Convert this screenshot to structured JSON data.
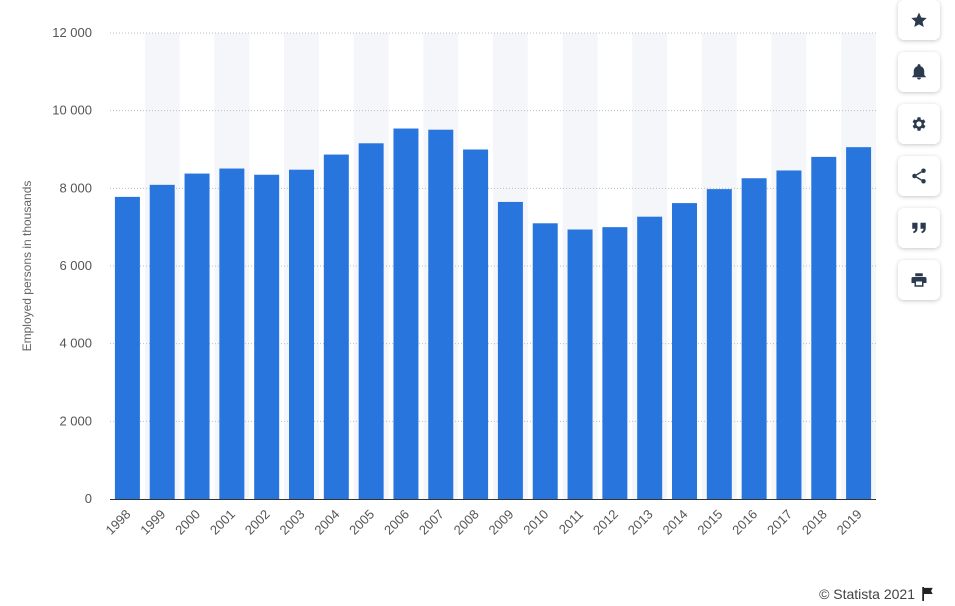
{
  "chart_data": {
    "type": "bar",
    "categories": [
      "1998",
      "1999",
      "2000",
      "2001",
      "2002",
      "2003",
      "2004",
      "2005",
      "2006",
      "2007",
      "2008",
      "2009",
      "2010",
      "2011",
      "2012",
      "2013",
      "2014",
      "2015",
      "2016",
      "2017",
      "2018",
      "2019"
    ],
    "values": [
      7780,
      8090,
      8380,
      8510,
      8350,
      8480,
      8870,
      9160,
      9540,
      9510,
      9000,
      7650,
      7100,
      6940,
      7000,
      7270,
      7620,
      7980,
      8260,
      8460,
      8810,
      9060
    ],
    "ylabel": "Employed persons in thousands",
    "xlabel": "",
    "ylim": [
      0,
      12000
    ],
    "yticks": [
      0,
      2000,
      4000,
      6000,
      8000,
      10000,
      12000
    ],
    "ytick_labels": [
      "0",
      "2 000",
      "4 000",
      "6 000",
      "8 000",
      "10 000",
      "12 000"
    ],
    "bar_color": "#2876dd",
    "grid": true,
    "grid_style": "dotted"
  },
  "toolbar": {
    "items": [
      {
        "name": "favorite-button",
        "icon": "star-icon"
      },
      {
        "name": "notification-button",
        "icon": "bell-icon"
      },
      {
        "name": "settings-button",
        "icon": "gear-icon"
      },
      {
        "name": "share-button",
        "icon": "share-icon"
      },
      {
        "name": "cite-button",
        "icon": "quote-icon"
      },
      {
        "name": "print-button",
        "icon": "print-icon"
      }
    ]
  },
  "credit": {
    "text": "© Statista 2021",
    "icon": "flag-icon"
  }
}
